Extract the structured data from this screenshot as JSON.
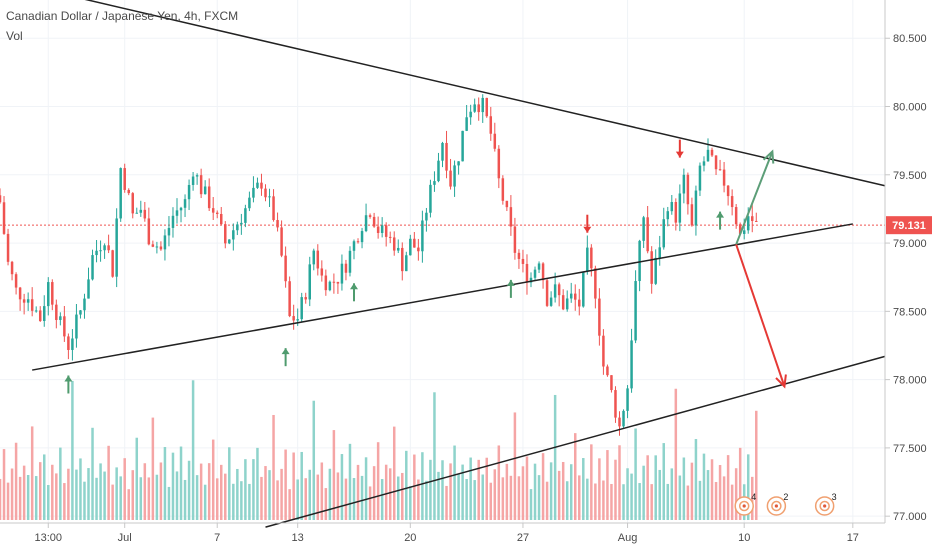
{
  "header": {
    "title": "Canadian Dollar / Japanese Yen, 4h, FXCM",
    "vol_label": "Vol"
  },
  "colors": {
    "up": "#26a69a",
    "down": "#ef5350",
    "vol_up": "#8ed3cb",
    "vol_down": "#f5a5a5",
    "trendline": "#222222",
    "current_price_line": "#ef5350",
    "up_arrow": "#4f9b6e",
    "down_arrow": "#e53935",
    "projection_up": "#5c9e78",
    "projection_down": "#e53935",
    "badge": "#f0a070"
  },
  "chart_data": {
    "type": "candlestick",
    "symbol": "Canadian Dollar / Japanese Yen",
    "interval": "4h",
    "source": "FXCM",
    "y_axis": {
      "position": "right",
      "range": [
        76.95,
        80.78
      ],
      "ticks": [
        "80.500",
        "80.000",
        "79.500",
        "79.000",
        "78.500",
        "78.000",
        "77.500",
        "77.000"
      ]
    },
    "x_axis": {
      "range_bar_index": [
        0,
        220
      ],
      "ticks": [
        {
          "label": "13:00",
          "bar": 12
        },
        {
          "label": "Jul",
          "bar": 31
        },
        {
          "label": "7",
          "bar": 54
        },
        {
          "label": "13",
          "bar": 74
        },
        {
          "label": "20",
          "bar": 102
        },
        {
          "label": "27",
          "bar": 130
        },
        {
          "label": "Aug",
          "bar": 156
        },
        {
          "label": "10",
          "bar": 185
        },
        {
          "label": "17",
          "bar": 212
        }
      ]
    },
    "current_price": {
      "label": "79.131",
      "value": 79.131
    },
    "price_path": [
      [
        0,
        79.3
      ],
      [
        2,
        78.85
      ],
      [
        4,
        78.65
      ],
      [
        7,
        78.6
      ],
      [
        10,
        78.45
      ],
      [
        12,
        78.7
      ],
      [
        15,
        78.4
      ],
      [
        17,
        78.25
      ],
      [
        20,
        78.5
      ],
      [
        23,
        78.9
      ],
      [
        26,
        79.05
      ],
      [
        28,
        78.8
      ],
      [
        30,
        79.55
      ],
      [
        31,
        79.45
      ],
      [
        33,
        79.2
      ],
      [
        35,
        79.25
      ],
      [
        37,
        79.05
      ],
      [
        40,
        78.95
      ],
      [
        43,
        79.2
      ],
      [
        46,
        79.3
      ],
      [
        48,
        79.55
      ],
      [
        50,
        79.4
      ],
      [
        53,
        79.25
      ],
      [
        56,
        79.0
      ],
      [
        59,
        79.15
      ],
      [
        62,
        79.3
      ],
      [
        65,
        79.45
      ],
      [
        68,
        79.2
      ],
      [
        70,
        78.9
      ],
      [
        72,
        78.45
      ],
      [
        74,
        78.45
      ],
      [
        76,
        78.65
      ],
      [
        78,
        78.95
      ],
      [
        80,
        78.75
      ],
      [
        82,
        78.7
      ],
      [
        84,
        78.75
      ],
      [
        86,
        78.85
      ],
      [
        88,
        79.0
      ],
      [
        90,
        79.15
      ],
      [
        92,
        79.25
      ],
      [
        94,
        79.1
      ],
      [
        96,
        79.05
      ],
      [
        98,
        79.0
      ],
      [
        100,
        78.85
      ],
      [
        102,
        79.0
      ],
      [
        104,
        78.95
      ],
      [
        106,
        79.25
      ],
      [
        108,
        79.5
      ],
      [
        110,
        79.75
      ],
      [
        112,
        79.45
      ],
      [
        114,
        79.65
      ],
      [
        116,
        79.95
      ],
      [
        118,
        80.05
      ],
      [
        120,
        80.0
      ],
      [
        122,
        79.8
      ],
      [
        124,
        79.45
      ],
      [
        126,
        79.2
      ],
      [
        128,
        78.95
      ],
      [
        130,
        78.8
      ],
      [
        132,
        78.75
      ],
      [
        134,
        78.9
      ],
      [
        136,
        78.6
      ],
      [
        138,
        78.65
      ],
      [
        140,
        78.55
      ],
      [
        142,
        78.6
      ],
      [
        144,
        78.55
      ],
      [
        146,
        78.9
      ],
      [
        148,
        78.65
      ],
      [
        150,
        78.1
      ],
      [
        152,
        77.9
      ],
      [
        154,
        77.65
      ],
      [
        156,
        77.95
      ],
      [
        158,
        78.7
      ],
      [
        160,
        79.2
      ],
      [
        162,
        78.7
      ],
      [
        164,
        79.0
      ],
      [
        166,
        79.3
      ],
      [
        168,
        79.2
      ],
      [
        170,
        79.45
      ],
      [
        172,
        79.1
      ],
      [
        174,
        79.55
      ],
      [
        176,
        79.65
      ],
      [
        178,
        79.5
      ],
      [
        180,
        79.45
      ],
      [
        182,
        79.3
      ],
      [
        184,
        79.05
      ],
      [
        186,
        79.2
      ],
      [
        188,
        79.13
      ]
    ],
    "volume_pattern": [
      0.35,
      0.52,
      0.28,
      0.44,
      0.62,
      0.31,
      0.47,
      0.38,
      0.8,
      0.33,
      0.42,
      0.56,
      0.27,
      0.49,
      0.36,
      0.58,
      0.3,
      0.45,
      1.0,
      0.39,
      0.51,
      0.29,
      0.43,
      0.66,
      0.34,
      0.48,
      0.37,
      0.55,
      0.32,
      0.46
    ],
    "trendlines": [
      {
        "from": [
          0,
          80.93
        ],
        "to": [
          220,
          79.42
        ]
      },
      {
        "from": [
          8,
          78.07
        ],
        "to": [
          212,
          79.14
        ]
      },
      {
        "from": [
          66,
          76.92
        ],
        "to": [
          220,
          78.17
        ]
      }
    ],
    "up_arrows_at_bars": [
      17,
      71,
      88,
      127,
      179
    ],
    "down_arrows_at_bars": [
      146,
      169
    ],
    "projections": [
      {
        "direction": "up",
        "from": [
          183,
          78.99
        ],
        "to": [
          192,
          79.67
        ]
      },
      {
        "direction": "down",
        "from": [
          183,
          78.99
        ],
        "to": [
          195,
          77.95
        ]
      }
    ],
    "badges": [
      {
        "label": "4",
        "bar": 185
      },
      {
        "label": "2",
        "bar": 193
      },
      {
        "label": "3",
        "bar": 205
      }
    ]
  }
}
